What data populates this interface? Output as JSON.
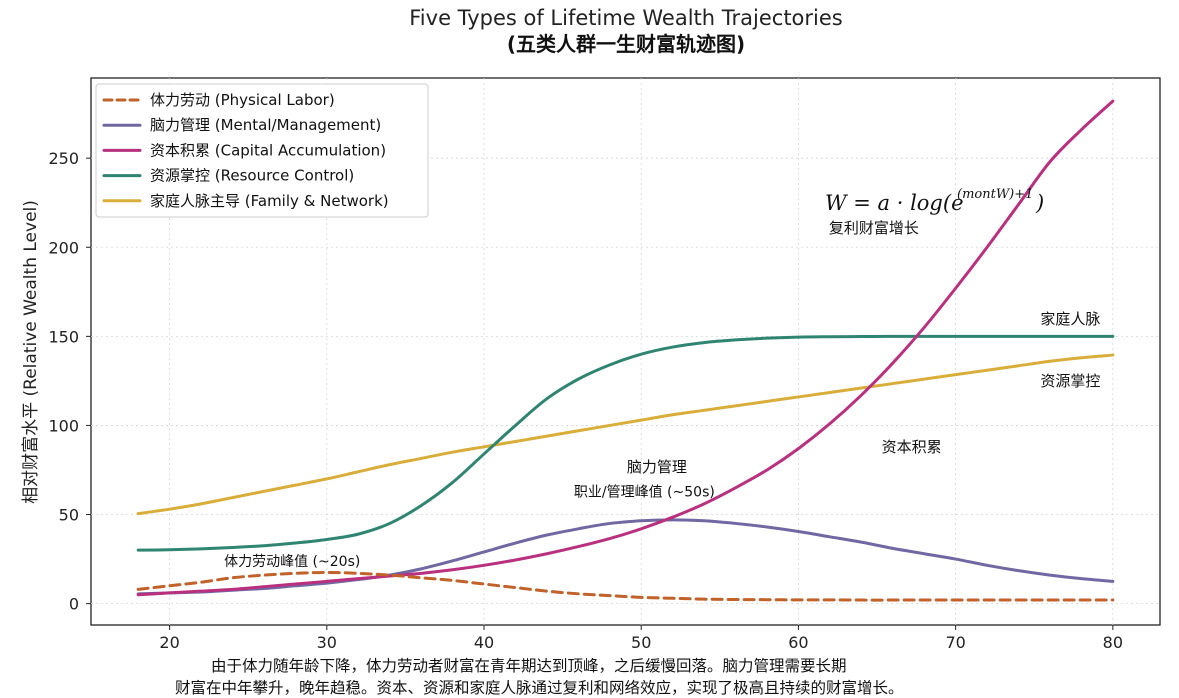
{
  "chart_data": {
    "type": "line",
    "title": "Five Types of Lifetime Wealth Trajectories",
    "subtitle": "(五类人群一生财富轨迹图)",
    "xlabel": "",
    "ylabel": "相对财富水平 (Relative Wealth Level)",
    "xlim": [
      15,
      83
    ],
    "ylim": [
      -12,
      295
    ],
    "xticks": [
      20,
      30,
      40,
      50,
      60,
      70,
      80
    ],
    "yticks": [
      0,
      50,
      100,
      150,
      200,
      250
    ],
    "grid": true,
    "legend_position": "top-left",
    "x": [
      18,
      20,
      22,
      24,
      26,
      28,
      30,
      32,
      34,
      36,
      38,
      40,
      42,
      44,
      46,
      48,
      50,
      52,
      54,
      56,
      58,
      60,
      62,
      64,
      66,
      68,
      70,
      72,
      74,
      76,
      78,
      80
    ],
    "series": [
      {
        "name": "体力劳动 (Physical Labor)",
        "color": "#c0622a",
        "dash": true,
        "values": [
          8,
          10,
          12,
          14.5,
          16,
          17,
          17.5,
          17,
          16,
          14.5,
          13,
          11,
          9,
          7,
          5.5,
          4.5,
          3.5,
          3,
          2.5,
          2.3,
          2.2,
          2.1,
          2.1,
          2,
          2,
          2,
          2,
          2,
          2,
          2,
          2,
          2
        ]
      },
      {
        "name": "脑力管理 (Mental/Management)",
        "color": "#7068a2",
        "dash": false,
        "values": [
          5.5,
          6,
          6.5,
          7.5,
          8.5,
          10,
          11.5,
          13.5,
          16,
          19.5,
          24,
          29,
          34,
          38.5,
          42,
          45,
          46.5,
          47,
          46.5,
          45,
          43,
          40.5,
          37.5,
          34.5,
          31,
          28,
          25,
          21.5,
          18.5,
          16,
          14,
          12.5
        ]
      },
      {
        "name": "资本积累 (Capital Accumulation)",
        "color": "#b8307e",
        "dash": false,
        "values": [
          5,
          6,
          7,
          8,
          9.5,
          11,
          12.5,
          14,
          15.5,
          17,
          19,
          21.5,
          24.5,
          28,
          32,
          36.5,
          42,
          48.5,
          56,
          65,
          75,
          87,
          101,
          117,
          135,
          155,
          177,
          200,
          224,
          248,
          266,
          282
        ]
      },
      {
        "name": "资源掌控 (Resource Control)",
        "color": "#2f8571",
        "dash": false,
        "values": [
          30,
          30.2,
          30.7,
          31.5,
          32.5,
          34,
          36,
          39,
          45,
          55,
          68,
          84,
          100,
          115,
          126,
          134,
          140,
          144,
          146.5,
          148,
          149,
          149.6,
          149.8,
          149.9,
          150,
          150,
          150,
          150,
          150,
          150,
          150,
          150
        ]
      },
      {
        "name": "家庭人脉主导 (Family & Network)",
        "color": "#d9ad3a",
        "dash": false,
        "values": [
          50.5,
          53,
          56,
          59.5,
          63,
          66.5,
          70,
          74,
          78,
          81.5,
          85,
          88,
          91,
          94,
          97,
          100,
          103,
          106,
          108.5,
          111,
          113.5,
          116,
          118.5,
          121,
          123.5,
          126,
          128.5,
          131,
          133.5,
          136,
          138,
          139.5
        ]
      }
    ],
    "annotations": [
      {
        "text": "体力劳动峰值 (~20s)",
        "x": 27.8,
        "y": 21
      },
      {
        "text": "脑力管理",
        "x": 51,
        "y": 74
      },
      {
        "text": "职业/管理峰值 (~50s)",
        "x": 50.2,
        "y": 60
      },
      {
        "text": "资本积累",
        "x": 67.2,
        "y": 85
      },
      {
        "text": "家庭人脉",
        "x": 77.3,
        "y": 157
      },
      {
        "text": "资源掌控",
        "x": 77.3,
        "y": 122
      },
      {
        "text": "复利财富增长",
        "x": 64.8,
        "y": 208
      }
    ],
    "formula": {
      "main": "W = a · log(e",
      "sup": "(montW)+1",
      "close": ")"
    }
  },
  "caption": {
    "line1": "由于体力随年龄下降，体力劳动者财富在青年期达到顶峰，之后缓慢回落。脑力管理需要长期",
    "line2": "财富在中年攀升，晚年趋稳。资本、资源和家庭人脉通过复利和网络效应，实现了极高且持续的财富增长。"
  }
}
